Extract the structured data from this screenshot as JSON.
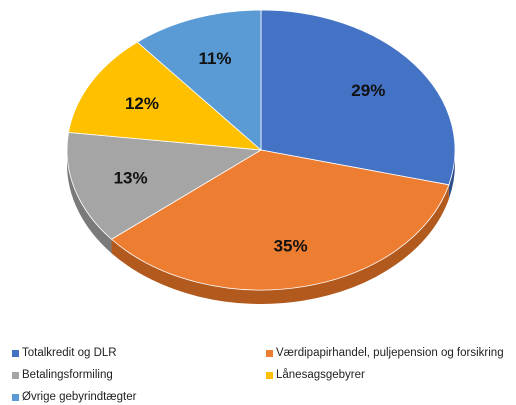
{
  "chart_data": {
    "type": "pie",
    "title": "",
    "categories": [
      "Totalkredit og DLR",
      "Værdipapirhandel, puljepension og forsikring",
      "Betalingsformiling",
      "Lånesagsgebyrer",
      "Øvrige gebyrindtægter"
    ],
    "values": [
      29,
      35,
      13,
      12,
      11
    ],
    "labels": [
      "29%",
      "35%",
      "13%",
      "12%",
      "11%"
    ],
    "colors": [
      "#4472C4",
      "#ED7D31",
      "#A5A5A5",
      "#FFC000",
      "#5B9BD5"
    ],
    "side_colors": [
      "#2E4F8A",
      "#B25A1E",
      "#7A7A7A",
      "#C29200",
      "#3F74A4"
    ],
    "three_d": true,
    "legend_position": "bottom"
  }
}
